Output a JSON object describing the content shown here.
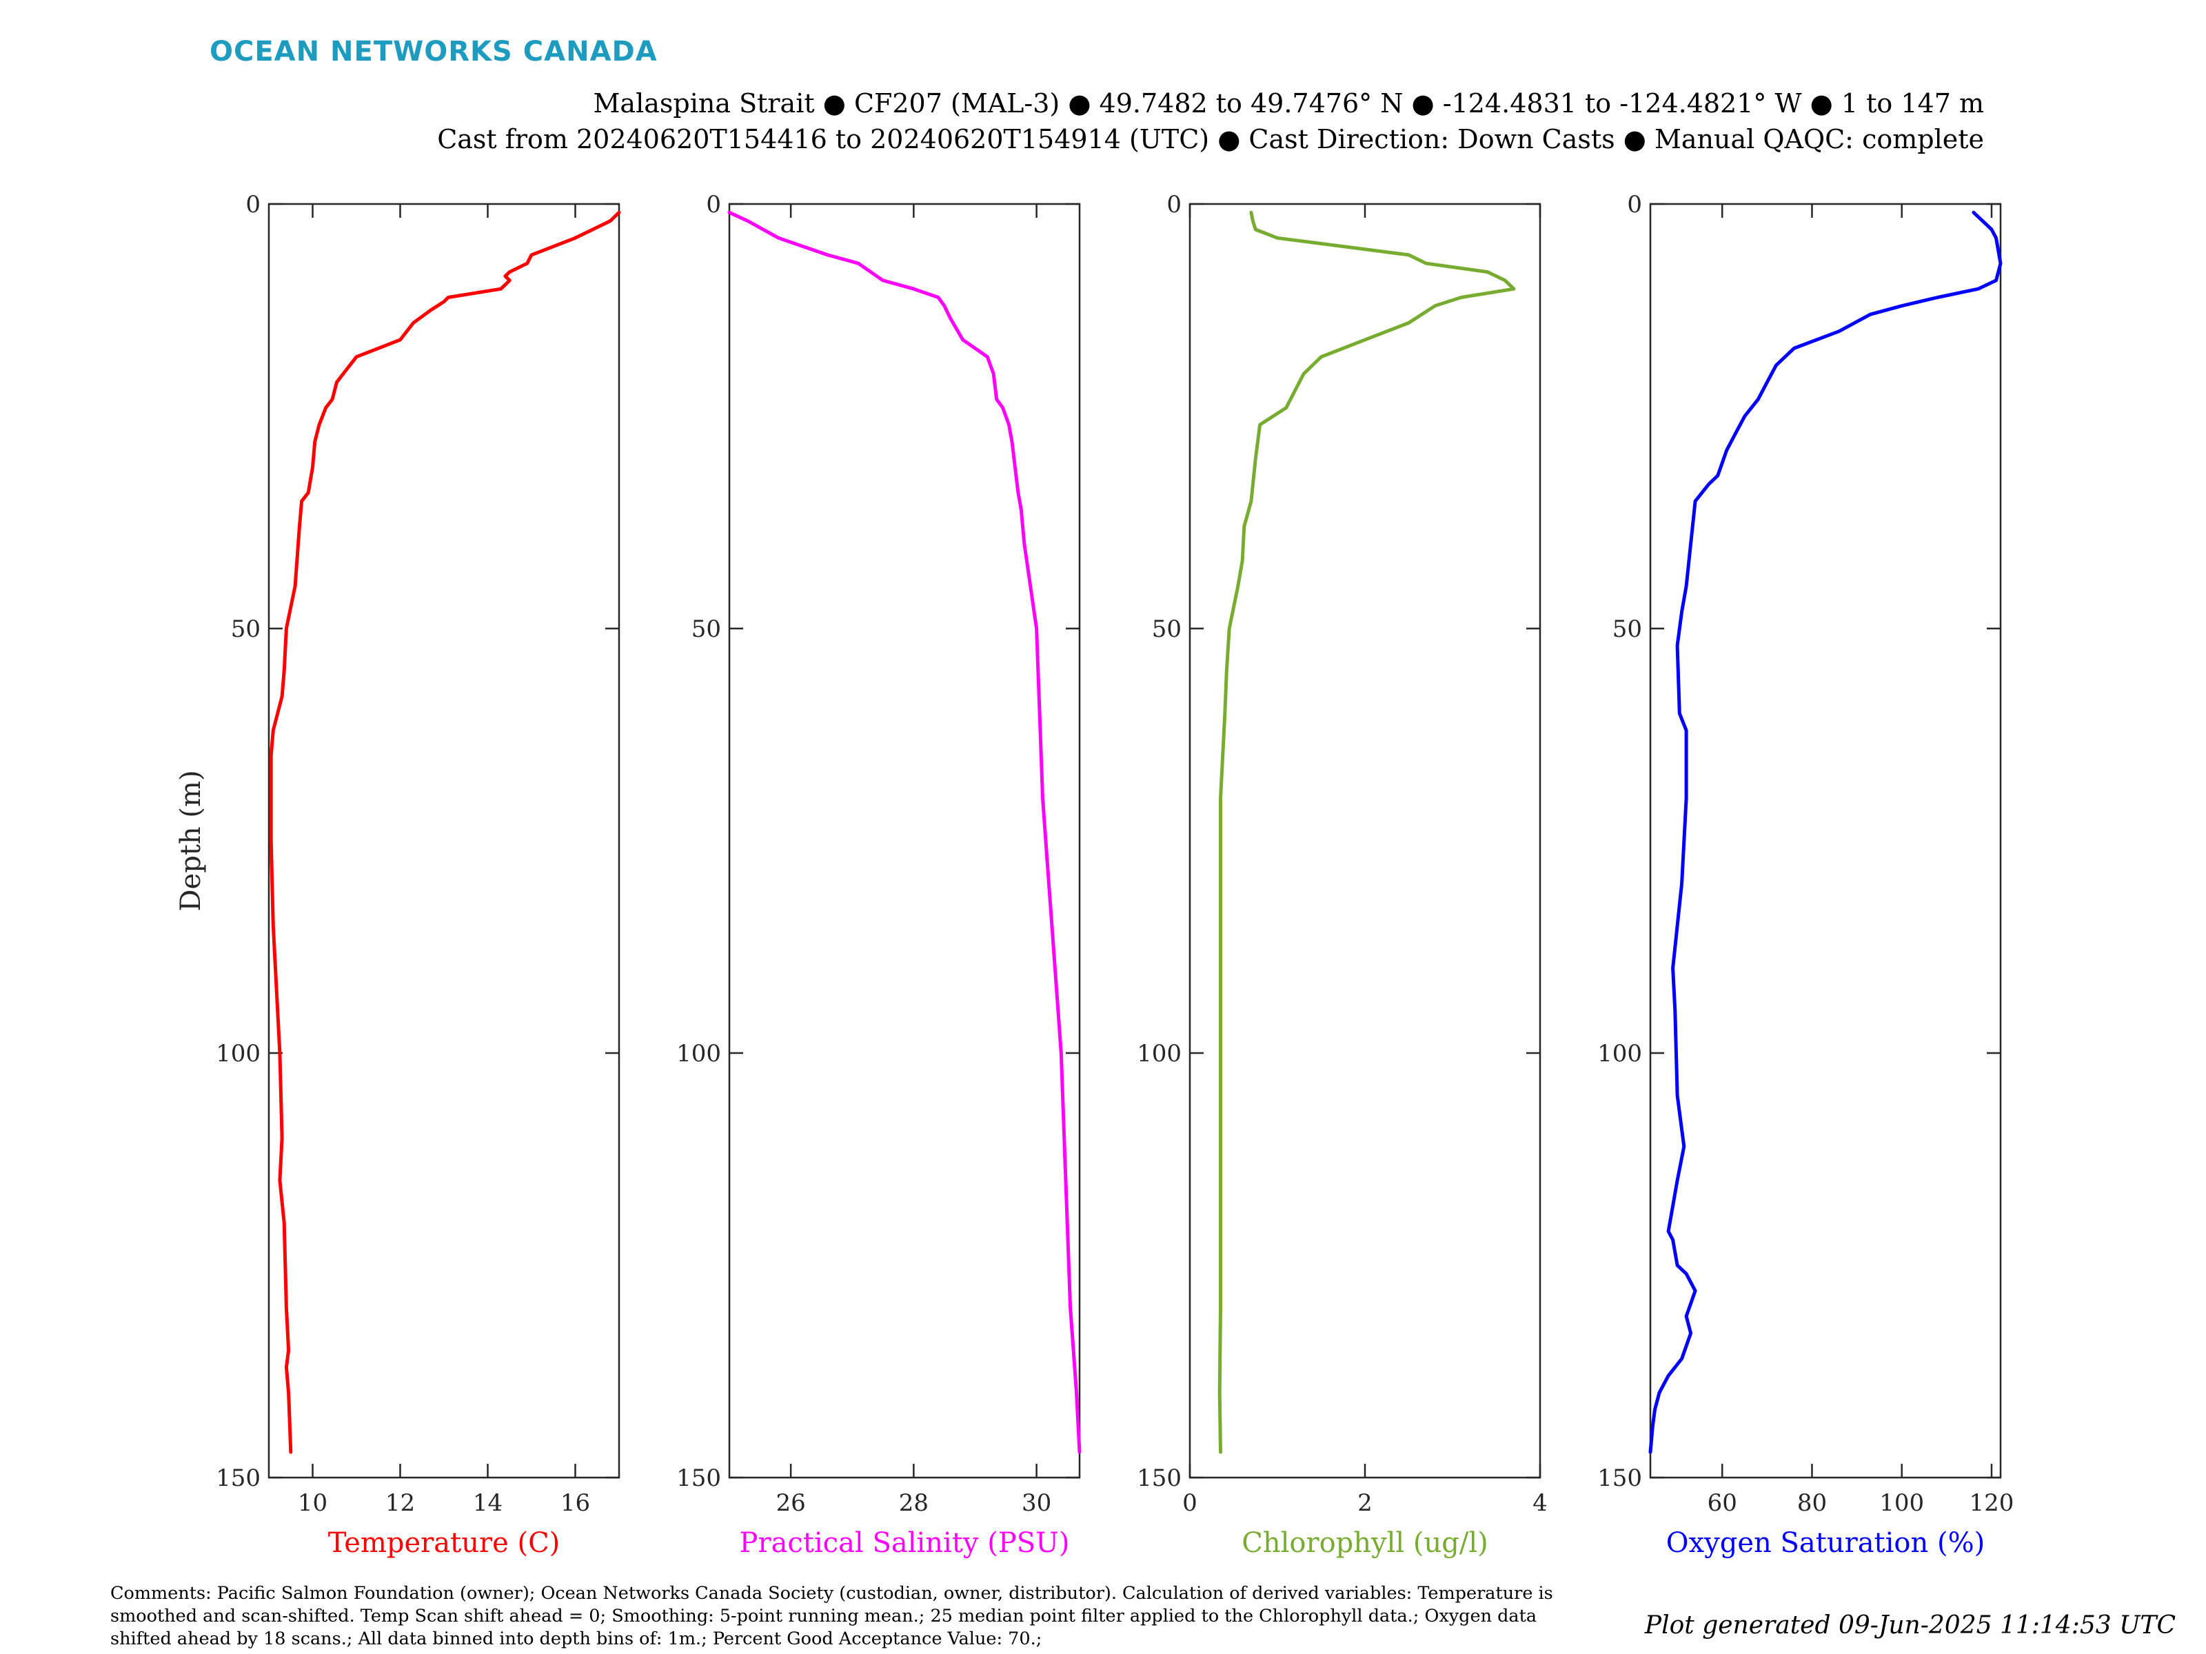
{
  "brand": "OCEAN NETWORKS CANADA",
  "title": {
    "line1": "Malaspina Strait ● CF207 (MAL-3) ● 49.7482 to 49.7476° N ● -124.4831 to -124.4821° W ● 1 to 147 m",
    "line2": "Cast from 20240620T154416 to 20240620T154914 (UTC) ● Cast Direction: Down Casts ● Manual QAQC: complete"
  },
  "comments": "Comments: Pacific Salmon Foundation (owner); Ocean Networks Canada Society (custodian, owner, distributor). Calculation of derived variables: Temperature is smoothed and scan-shifted. Temp Scan shift ahead = 0; Smoothing: 5-point running mean.; 25 median point filter applied to the Chlorophyll data.; Oxygen data shifted ahead by 18 scans.; All data binned into depth bins of: 1m.; Percent Good Acceptance Value: 70.;",
  "generated": "Plot generated 09-Jun-2025 11:14:53 UTC",
  "colors": {
    "temperature": "#ff0000",
    "salinity": "#ff00ff",
    "chlorophyll": "#77ac30",
    "oxygen": "#0000ff"
  },
  "chart_data": [
    {
      "type": "line",
      "xlabel": "Temperature (C)",
      "ylabel": "Depth (m)",
      "xlim": [
        9,
        17
      ],
      "ylim": [
        0,
        150
      ],
      "y_reversed": true,
      "xticks": [
        10,
        12,
        14,
        16
      ],
      "yticks": [
        0,
        50,
        100,
        150
      ],
      "color": "#ff0000",
      "x": [
        17.0,
        16.8,
        16.0,
        15.0,
        14.9,
        14.5,
        14.4,
        14.5,
        14.3,
        13.1,
        13.0,
        12.7,
        12.3,
        12.0,
        11.5,
        11.0,
        10.7,
        10.55,
        10.45,
        10.3,
        10.15,
        10.05,
        10.0,
        9.9,
        9.75,
        9.7,
        9.6,
        9.4,
        9.35,
        9.3,
        9.1,
        9.05,
        9.05,
        9.1,
        9.15,
        9.2,
        9.25,
        9.3,
        9.25,
        9.35,
        9.4,
        9.45,
        9.4,
        9.45,
        9.5
      ],
      "y": [
        1,
        2,
        4,
        6,
        7,
        8,
        8.5,
        9,
        10,
        11,
        11.5,
        12.5,
        14,
        16,
        17,
        18,
        20,
        21,
        23,
        24,
        26,
        28,
        31,
        34,
        35,
        38,
        45,
        50,
        55,
        58,
        62,
        65,
        75,
        85,
        90,
        95,
        100,
        110,
        115,
        120,
        130,
        135,
        137,
        140,
        147
      ]
    },
    {
      "type": "line",
      "xlabel": "Practical Salinity (PSU)",
      "ylabel": "",
      "xlim": [
        25,
        30.7
      ],
      "ylim": [
        0,
        150
      ],
      "y_reversed": true,
      "xticks": [
        26,
        28,
        30
      ],
      "yticks": [
        0,
        50,
        100,
        150
      ],
      "color": "#ff00ff",
      "x": [
        25.0,
        25.3,
        25.8,
        26.2,
        26.6,
        27.1,
        27.3,
        27.5,
        28.0,
        28.4,
        28.5,
        28.6,
        28.8,
        29.0,
        29.2,
        29.3,
        29.35,
        29.45,
        29.55,
        29.6,
        29.7,
        29.75,
        29.8,
        29.9,
        30.0,
        30.05,
        30.1,
        30.2,
        30.3,
        30.4,
        30.45,
        30.5,
        30.55,
        30.6,
        30.65,
        30.7
      ],
      "y": [
        1,
        2,
        4,
        5,
        6,
        7,
        8,
        9,
        10,
        11,
        12,
        13.5,
        16,
        17,
        18,
        20,
        23,
        24,
        26,
        28,
        34,
        36,
        40,
        45,
        50,
        60,
        70,
        80,
        90,
        100,
        110,
        120,
        130,
        135,
        140,
        147
      ]
    },
    {
      "type": "line",
      "xlabel": "Chlorophyll (ug/l)",
      "ylabel": "",
      "xlim": [
        0,
        4
      ],
      "ylim": [
        0,
        150
      ],
      "y_reversed": true,
      "xticks": [
        0,
        2,
        4
      ],
      "yticks": [
        0,
        50,
        100,
        150
      ],
      "color": "#77ac30",
      "x": [
        0.7,
        0.72,
        0.75,
        1.0,
        2.5,
        2.7,
        3.4,
        3.6,
        3.7,
        3.1,
        2.8,
        2.5,
        2.0,
        1.5,
        1.3,
        1.2,
        1.1,
        0.95,
        0.8,
        0.75,
        0.7,
        0.62,
        0.6,
        0.55,
        0.45,
        0.42,
        0.4,
        0.35,
        0.35,
        0.35,
        0.34,
        0.35
      ],
      "y": [
        1,
        2,
        3,
        4,
        6,
        7,
        8,
        9,
        10,
        11,
        12,
        14,
        16,
        18,
        20,
        22,
        24,
        25,
        26,
        30,
        35,
        38,
        42,
        45,
        50,
        55,
        60,
        70,
        100,
        130,
        140,
        147
      ]
    },
    {
      "type": "line",
      "xlabel": "Oxygen Saturation (%)",
      "ylabel": "",
      "xlim": [
        44,
        122
      ],
      "ylim": [
        0,
        150
      ],
      "y_reversed": true,
      "xticks": [
        60,
        80,
        100,
        120
      ],
      "yticks": [
        0,
        50,
        100,
        150
      ],
      "color": "#0000ff",
      "x": [
        116,
        118,
        120,
        121,
        122,
        121,
        117,
        108,
        100,
        93,
        86,
        76,
        72,
        70,
        68,
        65,
        63,
        61,
        59,
        57,
        54,
        53,
        52,
        51,
        50,
        50.5,
        52,
        52,
        51,
        50,
        49,
        49.5,
        50,
        51.5,
        50,
        49,
        48,
        49,
        50,
        52,
        54,
        52,
        53,
        51,
        48,
        46,
        45,
        44.5,
        44
      ],
      "y": [
        1,
        2,
        3,
        4,
        7,
        9,
        10,
        11,
        12,
        13,
        15,
        17,
        19,
        21,
        23,
        25,
        27,
        29,
        32,
        33,
        35,
        40,
        45,
        48,
        52,
        60,
        62,
        70,
        80,
        85,
        90,
        95,
        105,
        111,
        115,
        118,
        121,
        122,
        125,
        126,
        128,
        131,
        133,
        136,
        138,
        140,
        142,
        144,
        147
      ]
    }
  ]
}
